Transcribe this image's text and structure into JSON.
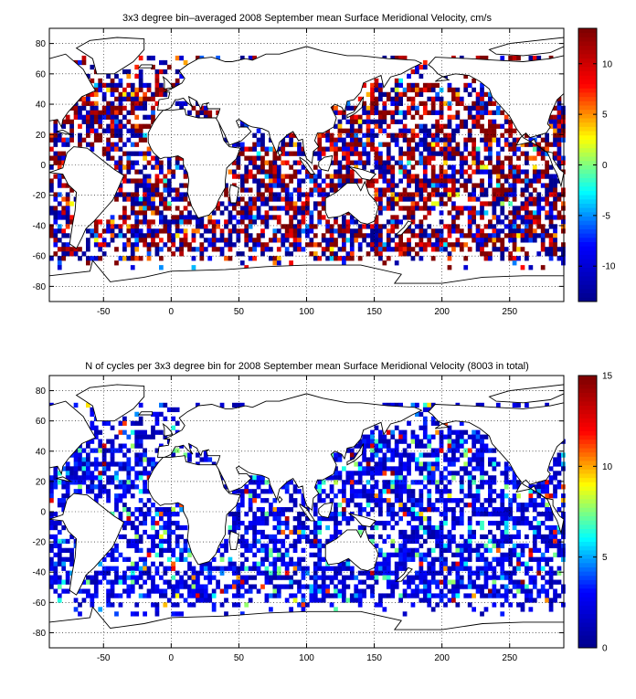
{
  "chart_data": [
    {
      "type": "heatmap",
      "title": "3x3 degree bin–averaged 2008 September mean Surface Meridional Velocity, cm/s",
      "xlabel": "",
      "ylabel": "",
      "xlim": [
        -90,
        290
      ],
      "ylim": [
        -90,
        90
      ],
      "x_ticks": [
        -50,
        0,
        50,
        100,
        150,
        200,
        250
      ],
      "y_ticks": [
        -80,
        -60,
        -40,
        -20,
        0,
        20,
        40,
        60,
        80
      ],
      "grid": true,
      "bin_size_deg": 3,
      "colorbar": {
        "min": -13.5,
        "max": 13.5,
        "ticks": [
          -10,
          -5,
          0,
          5,
          10
        ],
        "colormap": "jet"
      },
      "colormap_stops": [
        "#00008f",
        "#0000ff",
        "#00ffff",
        "#ffff00",
        "#ff0000",
        "#800000"
      ]
    },
    {
      "type": "heatmap",
      "title": "N of cycles per 3x3 degree bin for 2008 September mean Surface Meridional Velocity (8003 in total)",
      "xlabel": "",
      "ylabel": "",
      "xlim": [
        -90,
        290
      ],
      "ylim": [
        -90,
        90
      ],
      "x_ticks": [
        -50,
        0,
        50,
        100,
        150,
        200,
        250
      ],
      "y_ticks": [
        -80,
        -60,
        -40,
        -20,
        0,
        20,
        40,
        60,
        80
      ],
      "grid": true,
      "bin_size_deg": 3,
      "colorbar": {
        "min": 0,
        "max": 15,
        "ticks": [
          0,
          5,
          10,
          15
        ],
        "colormap": "jet"
      },
      "colormap_stops": [
        "#00008f",
        "#0000ff",
        "#00ffff",
        "#ffff00",
        "#ff0000",
        "#800000"
      ]
    }
  ]
}
